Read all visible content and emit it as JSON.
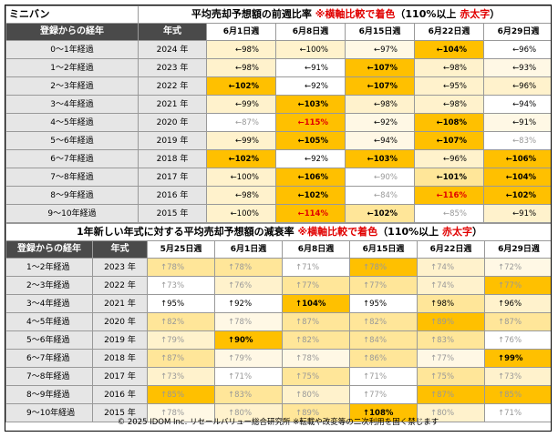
{
  "table1": {
    "corner_label": "ミニバン",
    "title_prefix": "平均売却予想額の前週比率 ",
    "title_note": "※横軸比較で着色",
    "title_paren": "（110%以上 ",
    "title_red": "赤太字",
    "title_close": "）",
    "headers": [
      "登録からの経年",
      "年式",
      "6月1日週",
      "6月8日週",
      "6月15日週",
      "6月22日週",
      "6月29日週"
    ],
    "rows": [
      {
        "label": "0～1年経過",
        "year": "2024 年",
        "cells": [
          {
            "t": "←98%",
            "bg": "#fff2cc",
            "s": ""
          },
          {
            "t": "←100%",
            "bg": "#fff2cc",
            "s": ""
          },
          {
            "t": "←97%",
            "bg": "#fff8e5",
            "s": ""
          },
          {
            "t": "←104%",
            "bg": "#ffc000",
            "s": "bold"
          },
          {
            "t": "←96%",
            "bg": "#ffffff",
            "s": ""
          }
        ]
      },
      {
        "label": "1～2年経過",
        "year": "2023 年",
        "cells": [
          {
            "t": "←98%",
            "bg": "#fff2cc",
            "s": ""
          },
          {
            "t": "←91%",
            "bg": "#ffffff",
            "s": ""
          },
          {
            "t": "←107%",
            "bg": "#ffc000",
            "s": "bold"
          },
          {
            "t": "←98%",
            "bg": "#fff2cc",
            "s": ""
          },
          {
            "t": "←93%",
            "bg": "#fff8e5",
            "s": ""
          }
        ]
      },
      {
        "label": "2～3年経過",
        "year": "2022 年",
        "cells": [
          {
            "t": "←102%",
            "bg": "#ffc000",
            "s": "bold"
          },
          {
            "t": "←92%",
            "bg": "#ffffff",
            "s": ""
          },
          {
            "t": "←107%",
            "bg": "#ffc000",
            "s": "bold"
          },
          {
            "t": "←95%",
            "bg": "#fff2cc",
            "s": ""
          },
          {
            "t": "←96%",
            "bg": "#fff2cc",
            "s": ""
          }
        ]
      },
      {
        "label": "3～4年経過",
        "year": "2021 年",
        "cells": [
          {
            "t": "←99%",
            "bg": "#fff2cc",
            "s": ""
          },
          {
            "t": "←103%",
            "bg": "#ffc000",
            "s": "bold"
          },
          {
            "t": "←98%",
            "bg": "#fff2cc",
            "s": ""
          },
          {
            "t": "←98%",
            "bg": "#fff2cc",
            "s": ""
          },
          {
            "t": "←94%",
            "bg": "#ffffff",
            "s": ""
          }
        ]
      },
      {
        "label": "4～5年経過",
        "year": "2020 年",
        "cells": [
          {
            "t": "←87%",
            "bg": "#ffffff",
            "s": "lite"
          },
          {
            "t": "←115%",
            "bg": "#ffc000",
            "s": "red"
          },
          {
            "t": "←92%",
            "bg": "#fff8e5",
            "s": ""
          },
          {
            "t": "←108%",
            "bg": "#ffc000",
            "s": "bold"
          },
          {
            "t": "←91%",
            "bg": "#fff8e5",
            "s": ""
          }
        ]
      },
      {
        "label": "5～6年経過",
        "year": "2019 年",
        "cells": [
          {
            "t": "←99%",
            "bg": "#fff2cc",
            "s": ""
          },
          {
            "t": "←105%",
            "bg": "#ffc000",
            "s": "bold"
          },
          {
            "t": "←94%",
            "bg": "#fff8e5",
            "s": ""
          },
          {
            "t": "←107%",
            "bg": "#ffc000",
            "s": "bold"
          },
          {
            "t": "←83%",
            "bg": "#ffffff",
            "s": "lite"
          }
        ]
      },
      {
        "label": "6～7年経過",
        "year": "2018 年",
        "cells": [
          {
            "t": "←102%",
            "bg": "#ffc000",
            "s": "bold"
          },
          {
            "t": "←92%",
            "bg": "#ffffff",
            "s": ""
          },
          {
            "t": "←103%",
            "bg": "#ffc000",
            "s": "bold"
          },
          {
            "t": "←96%",
            "bg": "#fff2cc",
            "s": ""
          },
          {
            "t": "←106%",
            "bg": "#ffc000",
            "s": "bold"
          }
        ]
      },
      {
        "label": "7～8年経過",
        "year": "2017 年",
        "cells": [
          {
            "t": "←100%",
            "bg": "#fff2cc",
            "s": ""
          },
          {
            "t": "←106%",
            "bg": "#ffc000",
            "s": "bold"
          },
          {
            "t": "←90%",
            "bg": "#ffffff",
            "s": "lite"
          },
          {
            "t": "←101%",
            "bg": "#ffe699",
            "s": "bold"
          },
          {
            "t": "←104%",
            "bg": "#ffc000",
            "s": "bold"
          }
        ]
      },
      {
        "label": "8～9年経過",
        "year": "2016 年",
        "cells": [
          {
            "t": "←98%",
            "bg": "#fff2cc",
            "s": ""
          },
          {
            "t": "←102%",
            "bg": "#ffc000",
            "s": "bold"
          },
          {
            "t": "←84%",
            "bg": "#ffffff",
            "s": "lite"
          },
          {
            "t": "←116%",
            "bg": "#ffc000",
            "s": "red"
          },
          {
            "t": "←102%",
            "bg": "#ffc000",
            "s": "bold"
          }
        ]
      },
      {
        "label": "9～10年経過",
        "year": "2015 年",
        "cells": [
          {
            "t": "←100%",
            "bg": "#fff2cc",
            "s": ""
          },
          {
            "t": "←114%",
            "bg": "#ffc000",
            "s": "red"
          },
          {
            "t": "←102%",
            "bg": "#ffe699",
            "s": "bold"
          },
          {
            "t": "←85%",
            "bg": "#ffffff",
            "s": "lite"
          },
          {
            "t": "←91%",
            "bg": "#fff2cc",
            "s": ""
          }
        ]
      }
    ]
  },
  "table2": {
    "title_prefix": "1年新しい年式に対する平均売却予想額の減衰率 ",
    "title_note": "※横軸比較で着色",
    "title_paren": "（110%以上 ",
    "title_red": "赤太字",
    "title_close": "）",
    "headers": [
      "登録からの経年",
      "年式",
      "5月25日週",
      "6月1日週",
      "6月8日週",
      "6月15日週",
      "6月22日週",
      "6月29日週"
    ],
    "rows": [
      {
        "label": "1～2年経過",
        "year": "2023 年",
        "cells": [
          {
            "t": "↑78%",
            "bg": "#ffe699",
            "s": "lite"
          },
          {
            "t": "↑78%",
            "bg": "#ffe699",
            "s": "lite"
          },
          {
            "t": "↑71%",
            "bg": "#ffffff",
            "s": "lite"
          },
          {
            "t": "↑78%",
            "bg": "#ffc000",
            "s": "lite"
          },
          {
            "t": "↑74%",
            "bg": "#fff2cc",
            "s": "lite"
          },
          {
            "t": "↑72%",
            "bg": "#fff8e5",
            "s": "lite"
          }
        ]
      },
      {
        "label": "2～3年経過",
        "year": "2022 年",
        "cells": [
          {
            "t": "↑73%",
            "bg": "#ffffff",
            "s": "lite"
          },
          {
            "t": "↑76%",
            "bg": "#fff2cc",
            "s": "lite"
          },
          {
            "t": "↑77%",
            "bg": "#ffe699",
            "s": "lite"
          },
          {
            "t": "↑77%",
            "bg": "#ffe699",
            "s": "lite"
          },
          {
            "t": "↑74%",
            "bg": "#fff2cc",
            "s": "lite"
          },
          {
            "t": "↑77%",
            "bg": "#ffc000",
            "s": "lite"
          }
        ]
      },
      {
        "label": "3～4年経過",
        "year": "2021 年",
        "cells": [
          {
            "t": "↑95%",
            "bg": "#ffffff",
            "s": ""
          },
          {
            "t": "↑92%",
            "bg": "#ffffff",
            "s": ""
          },
          {
            "t": "↑104%",
            "bg": "#ffc000",
            "s": "bold"
          },
          {
            "t": "↑95%",
            "bg": "#ffffff",
            "s": ""
          },
          {
            "t": "↑98%",
            "bg": "#ffe699",
            "s": ""
          },
          {
            "t": "↑96%",
            "bg": "#fff2cc",
            "s": ""
          }
        ]
      },
      {
        "label": "4～5年経過",
        "year": "2020 年",
        "cells": [
          {
            "t": "↑82%",
            "bg": "#ffe699",
            "s": "lite"
          },
          {
            "t": "↑78%",
            "bg": "#fff8e5",
            "s": "lite"
          },
          {
            "t": "↑87%",
            "bg": "#ffe699",
            "s": "lite"
          },
          {
            "t": "↑82%",
            "bg": "#ffe699",
            "s": "lite"
          },
          {
            "t": "↑89%",
            "bg": "#ffc000",
            "s": "lite"
          },
          {
            "t": "↑87%",
            "bg": "#ffe699",
            "s": "lite"
          }
        ]
      },
      {
        "label": "5～6年経過",
        "year": "2019 年",
        "cells": [
          {
            "t": "↑79%",
            "bg": "#fff2cc",
            "s": "lite"
          },
          {
            "t": "↑90%",
            "bg": "#ffc000",
            "s": "bold"
          },
          {
            "t": "↑82%",
            "bg": "#ffe699",
            "s": "lite"
          },
          {
            "t": "↑84%",
            "bg": "#ffe699",
            "s": "lite"
          },
          {
            "t": "↑83%",
            "bg": "#ffe699",
            "s": "lite"
          },
          {
            "t": "↑76%",
            "bg": "#ffffff",
            "s": "lite"
          }
        ]
      },
      {
        "label": "6～7年経過",
        "year": "2018 年",
        "cells": [
          {
            "t": "↑87%",
            "bg": "#ffe699",
            "s": "lite"
          },
          {
            "t": "↑79%",
            "bg": "#fff8e5",
            "s": "lite"
          },
          {
            "t": "↑78%",
            "bg": "#fff8e5",
            "s": "lite"
          },
          {
            "t": "↑86%",
            "bg": "#ffe699",
            "s": "lite"
          },
          {
            "t": "↑77%",
            "bg": "#fff8e5",
            "s": "lite"
          },
          {
            "t": "↑99%",
            "bg": "#ffc000",
            "s": "bold"
          }
        ]
      },
      {
        "label": "7～8年経過",
        "year": "2017 年",
        "cells": [
          {
            "t": "↑73%",
            "bg": "#fff2cc",
            "s": "lite"
          },
          {
            "t": "↑71%",
            "bg": "#ffffff",
            "s": "lite"
          },
          {
            "t": "↑75%",
            "bg": "#ffe699",
            "s": "lite"
          },
          {
            "t": "↑71%",
            "bg": "#ffffff",
            "s": "lite"
          },
          {
            "t": "↑75%",
            "bg": "#ffe699",
            "s": "lite"
          },
          {
            "t": "↑73%",
            "bg": "#fff2cc",
            "s": "lite"
          }
        ]
      },
      {
        "label": "8～9年経過",
        "year": "2016 年",
        "cells": [
          {
            "t": "↑85%",
            "bg": "#ffc000",
            "s": "lite"
          },
          {
            "t": "↑83%",
            "bg": "#ffe699",
            "s": "lite"
          },
          {
            "t": "↑80%",
            "bg": "#fff2cc",
            "s": "lite"
          },
          {
            "t": "↑77%",
            "bg": "#ffffff",
            "s": "lite"
          },
          {
            "t": "↑87%",
            "bg": "#ffc000",
            "s": "lite"
          },
          {
            "t": "↑85%",
            "bg": "#ffc000",
            "s": "lite"
          }
        ]
      },
      {
        "label": "9～10年経過",
        "year": "2015 年",
        "cells": [
          {
            "t": "↑78%",
            "bg": "#fff8e5",
            "s": "lite"
          },
          {
            "t": "↑80%",
            "bg": "#fff2cc",
            "s": "lite"
          },
          {
            "t": "↑89%",
            "bg": "#ffe699",
            "s": "lite"
          },
          {
            "t": "↑108%",
            "bg": "#ffc000",
            "s": "bold"
          },
          {
            "t": "↑80%",
            "bg": "#fff2cc",
            "s": "lite"
          },
          {
            "t": "↑71%",
            "bg": "#ffffff",
            "s": "lite"
          }
        ]
      }
    ]
  },
  "footer": "© 2025 IDOM Inc. リセールバリュー総合研究所 ※転載や改変等の二次利用を固く禁じます"
}
